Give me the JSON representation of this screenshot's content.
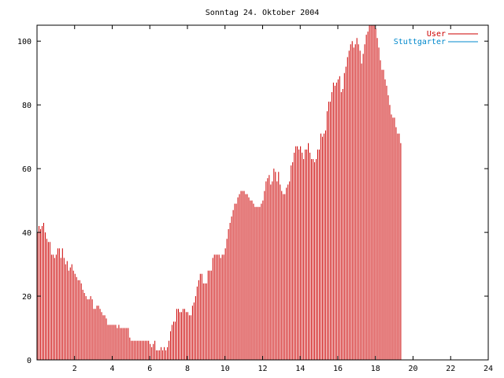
{
  "chart_data": {
    "type": "bar",
    "title": "Sonntag 24. Oktober 2004",
    "xlabel": "",
    "ylabel": "",
    "xlim": [
      0,
      24
    ],
    "ylim": [
      0,
      105
    ],
    "x_ticks": [
      2,
      4,
      6,
      8,
      10,
      12,
      14,
      16,
      18,
      20,
      22,
      24
    ],
    "y_ticks": [
      0,
      20,
      40,
      60,
      80,
      100
    ],
    "x_tick_labels": [
      "2",
      "4",
      "6",
      "8",
      "10",
      "12",
      "14",
      "16",
      "18",
      "20",
      "22",
      "24"
    ],
    "y_tick_labels": [
      "0",
      "20",
      "40",
      "60",
      "80",
      "100"
    ],
    "grid": false,
    "legend_position": "top-right",
    "series": [
      {
        "name": "User",
        "color": "#cc0000",
        "x_start": 0,
        "x_step": 0.0833,
        "values": [
          40,
          42,
          41,
          42,
          43,
          40,
          38,
          37,
          37,
          33,
          33,
          32,
          33,
          35,
          35,
          32,
          35,
          32,
          30,
          31,
          28,
          29,
          30,
          28,
          27,
          26,
          25,
          25,
          24,
          22,
          21,
          20,
          19,
          19,
          20,
          19,
          16,
          16,
          17,
          17,
          16,
          15,
          14,
          14,
          13,
          11,
          11,
          11,
          11,
          11,
          11,
          10,
          11,
          10,
          10,
          10,
          10,
          10,
          10,
          7,
          6,
          6,
          6,
          6,
          6,
          6,
          6,
          6,
          6,
          6,
          6,
          6,
          5,
          4,
          5,
          6,
          3,
          3,
          3,
          4,
          3,
          4,
          3,
          4,
          6,
          9,
          11,
          12,
          12,
          16,
          16,
          15,
          15,
          16,
          16,
          15,
          15,
          14,
          14,
          17,
          18,
          20,
          23,
          25,
          27,
          27,
          24,
          24,
          24,
          28,
          28,
          28,
          32,
          33,
          33,
          33,
          33,
          32,
          33,
          33,
          35,
          38,
          41,
          43,
          45,
          47,
          49,
          49,
          51,
          52,
          53,
          53,
          53,
          52,
          52,
          51,
          50,
          50,
          49,
          48,
          48,
          48,
          48,
          49,
          50,
          53,
          56,
          57,
          58,
          55,
          56,
          60,
          59,
          56,
          59,
          55,
          53,
          52,
          52,
          54,
          55,
          56,
          61,
          62,
          65,
          67,
          67,
          66,
          67,
          65,
          63,
          66,
          66,
          68,
          65,
          63,
          63,
          62,
          63,
          66,
          66,
          71,
          70,
          71,
          72,
          78,
          81,
          81,
          84,
          87,
          86,
          87,
          88,
          89,
          84,
          85,
          90,
          92,
          95,
          97,
          99,
          100,
          98,
          99,
          101,
          99,
          97,
          93,
          96,
          99,
          102,
          103,
          105,
          105,
          105,
          105,
          104,
          101,
          98,
          94,
          91,
          91,
          88,
          86,
          83,
          80,
          77,
          76,
          76,
          73,
          71,
          71,
          68
        ]
      },
      {
        "name": "Stuttgarter",
        "color": "#0088cc",
        "values": []
      }
    ]
  }
}
